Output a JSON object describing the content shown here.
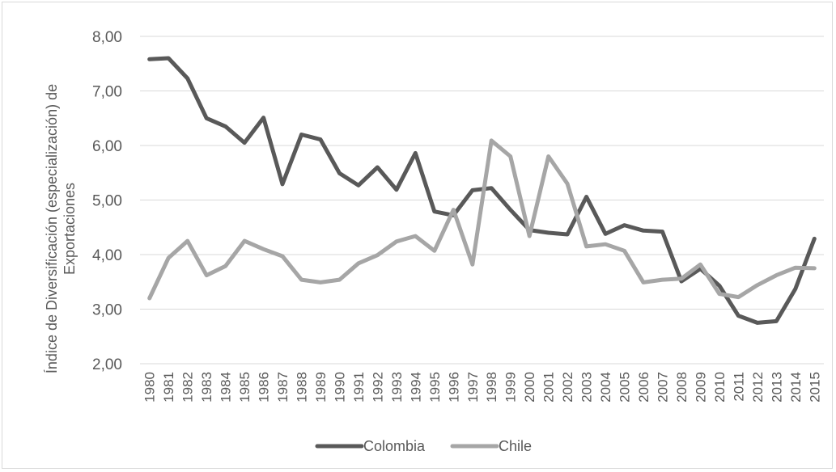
{
  "chart_data": {
    "type": "line",
    "title": "",
    "ylabel_lines": [
      "Índice de Diversificación (especialización) de",
      "Exportaciones"
    ],
    "xlabel": "",
    "ylim": [
      2,
      8
    ],
    "ytick_step": 1,
    "ytick_labels": [
      "2,00",
      "3,00",
      "4,00",
      "5,00",
      "6,00",
      "7,00",
      "8,00"
    ],
    "grid": true,
    "legend": "bottom",
    "x": [
      "1980",
      "1981",
      "1982",
      "1983",
      "1984",
      "1985",
      "1986",
      "1987",
      "1988",
      "1989",
      "1990",
      "1991",
      "1992",
      "1993",
      "1994",
      "1995",
      "1996",
      "1997",
      "1998",
      "1999",
      "2000",
      "2001",
      "2002",
      "2003",
      "2004",
      "2005",
      "2006",
      "2007",
      "2008",
      "2009",
      "2010",
      "2011",
      "2012",
      "2013",
      "2014",
      "2015"
    ],
    "series": [
      {
        "name": "Colombia",
        "color": "#595959",
        "values": [
          7.58,
          7.6,
          7.23,
          6.5,
          6.35,
          6.05,
          6.51,
          5.29,
          6.2,
          6.11,
          5.49,
          5.27,
          5.6,
          5.19,
          5.86,
          4.79,
          4.72,
          5.18,
          5.22,
          4.82,
          4.45,
          4.4,
          4.37,
          5.06,
          4.38,
          4.54,
          4.44,
          4.42,
          3.51,
          3.74,
          3.43,
          2.88,
          2.75,
          2.78,
          3.37,
          4.29
        ]
      },
      {
        "name": "Chile",
        "color": "#a6a6a6",
        "values": [
          3.2,
          3.94,
          4.25,
          3.62,
          3.79,
          4.25,
          4.1,
          3.97,
          3.54,
          3.49,
          3.54,
          3.84,
          3.99,
          4.24,
          4.34,
          4.07,
          4.82,
          3.82,
          6.09,
          5.8,
          4.34,
          5.8,
          5.3,
          4.15,
          4.19,
          4.07,
          3.49,
          3.54,
          3.56,
          3.82,
          3.28,
          3.22,
          3.44,
          3.62,
          3.76,
          3.75
        ]
      }
    ]
  }
}
